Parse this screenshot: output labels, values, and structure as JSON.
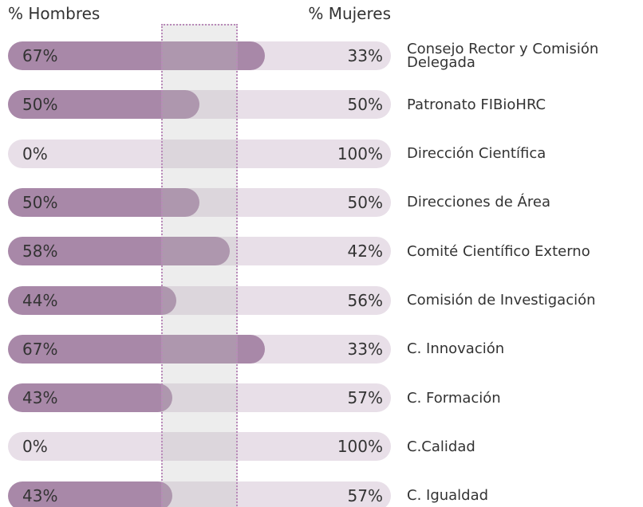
{
  "chart_data": {
    "type": "bar",
    "stacked": true,
    "orientation": "horizontal",
    "categories": [
      "Consejo Rector y Comisión Delegada",
      "Patronato FIBioHRC",
      "Dirección Científica",
      "Direcciones de Área",
      "Comité Científico Externo",
      "Comisión de Investigación",
      "C. Innovación",
      "C. Formación",
      "C.Calidad",
      "C. Igualdad"
    ],
    "series": [
      {
        "name": "% Hombres",
        "color": "#a888a8",
        "values": [
          67,
          50,
          0,
          50,
          58,
          44,
          67,
          43,
          0,
          43
        ],
        "value_labels": [
          "67%",
          "50%",
          "0%",
          "50%",
          "58%",
          "44%",
          "67%",
          "43%",
          "0%",
          "43%"
        ]
      },
      {
        "name": "% Mujeres",
        "color": "#e8dfe8",
        "values": [
          33,
          50,
          100,
          50,
          42,
          56,
          33,
          57,
          100,
          57
        ],
        "value_labels": [
          "33%",
          "50%",
          "100%",
          "50%",
          "42%",
          "56%",
          "33%",
          "57%",
          "100%",
          "57%"
        ]
      }
    ],
    "xlim": [
      0,
      100
    ],
    "parity_band": [
      40,
      60
    ]
  }
}
